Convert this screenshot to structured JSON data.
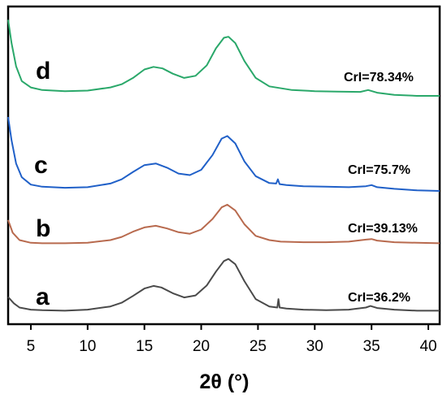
{
  "chart_data": {
    "type": "line",
    "xlabel": "2θ (°)",
    "ylabel": "",
    "xlim": [
      3,
      41
    ],
    "x_ticks": [
      "5",
      "10",
      "15",
      "20",
      "25",
      "30",
      "35",
      "40"
    ],
    "y_ticks_shown": false,
    "grid": false,
    "series": [
      {
        "name": "a",
        "annotation": "CrI=36.2%",
        "color": "#4a4a4a",
        "x": [
          3,
          3.5,
          4,
          5,
          6,
          8,
          10,
          12,
          13,
          14,
          15,
          15.8,
          16.5,
          17.5,
          18.5,
          19.5,
          20.5,
          21.3,
          22.0,
          22.4,
          23.0,
          23.8,
          24.8,
          26,
          26.7,
          26.8,
          26.9,
          27.5,
          29,
          31,
          33,
          34.5,
          34.9,
          35.5,
          37,
          39,
          41
        ],
        "y": [
          1.5,
          0.9,
          0.5,
          0.3,
          0.25,
          0.2,
          0.3,
          0.6,
          0.95,
          1.6,
          2.3,
          2.55,
          2.4,
          1.85,
          1.45,
          1.65,
          2.6,
          3.9,
          4.9,
          5.1,
          4.6,
          3.0,
          1.3,
          0.6,
          0.5,
          1.3,
          0.5,
          0.4,
          0.3,
          0.25,
          0.3,
          0.5,
          0.65,
          0.45,
          0.3,
          0.2,
          0.2
        ]
      },
      {
        "name": "b",
        "annotation": "CrI=39.13%",
        "color": "#b86a4e",
        "x": [
          3,
          3.4,
          4,
          5,
          6,
          8,
          10,
          12,
          13,
          14,
          15,
          16,
          17,
          18,
          19,
          20,
          21,
          21.8,
          22.3,
          23,
          23.8,
          24.8,
          26,
          27,
          29,
          31,
          33,
          34.5,
          35,
          35.5,
          37,
          39,
          41
        ],
        "y": [
          2.4,
          1.2,
          0.5,
          0.25,
          0.2,
          0.2,
          0.25,
          0.5,
          0.8,
          1.3,
          1.7,
          1.85,
          1.6,
          1.25,
          1.1,
          1.5,
          2.5,
          3.6,
          3.85,
          3.3,
          2.0,
          0.9,
          0.5,
          0.35,
          0.3,
          0.3,
          0.35,
          0.55,
          0.6,
          0.45,
          0.3,
          0.25,
          0.2
        ]
      },
      {
        "name": "c",
        "annotation": "CrI=75.7%",
        "color": "#2060c8",
        "x": [
          3,
          3.3,
          3.7,
          4.2,
          5,
          6,
          8,
          10,
          12,
          13,
          14,
          15,
          16,
          17,
          18,
          19,
          20,
          21,
          21.8,
          22.3,
          23,
          23.8,
          24.8,
          26,
          26.6,
          26.75,
          26.9,
          27.5,
          29,
          31,
          33,
          34.5,
          35,
          35.5,
          37,
          39,
          41
        ],
        "y": [
          7.0,
          4.8,
          2.6,
          1.3,
          0.6,
          0.4,
          0.3,
          0.35,
          0.7,
          1.1,
          1.8,
          2.45,
          2.6,
          2.2,
          1.65,
          1.5,
          2.0,
          3.4,
          4.95,
          5.2,
          4.5,
          2.8,
          1.4,
          0.75,
          0.7,
          1.1,
          0.65,
          0.55,
          0.45,
          0.4,
          0.35,
          0.45,
          0.55,
          0.35,
          0.2,
          0.05,
          0.0
        ]
      },
      {
        "name": "d",
        "annotation": "CrI=78.34%",
        "color": "#2aa86a",
        "x": [
          3,
          3.3,
          3.7,
          4.2,
          5,
          6,
          8,
          10,
          12,
          13,
          14,
          15,
          15.8,
          16.6,
          17.5,
          18.5,
          19.5,
          20.5,
          21.3,
          22.0,
          22.4,
          23.0,
          23.8,
          24.8,
          26,
          28,
          30,
          32,
          34,
          34.7,
          35.5,
          37,
          39,
          41
        ],
        "y": [
          7.2,
          5.0,
          2.8,
          1.4,
          0.8,
          0.55,
          0.45,
          0.5,
          0.8,
          1.1,
          1.7,
          2.5,
          2.75,
          2.6,
          2.1,
          1.7,
          1.9,
          2.9,
          4.5,
          5.5,
          5.6,
          5.0,
          3.3,
          1.7,
          0.9,
          0.55,
          0.45,
          0.4,
          0.38,
          0.55,
          0.3,
          0.1,
          0.0,
          0.0
        ]
      }
    ]
  }
}
